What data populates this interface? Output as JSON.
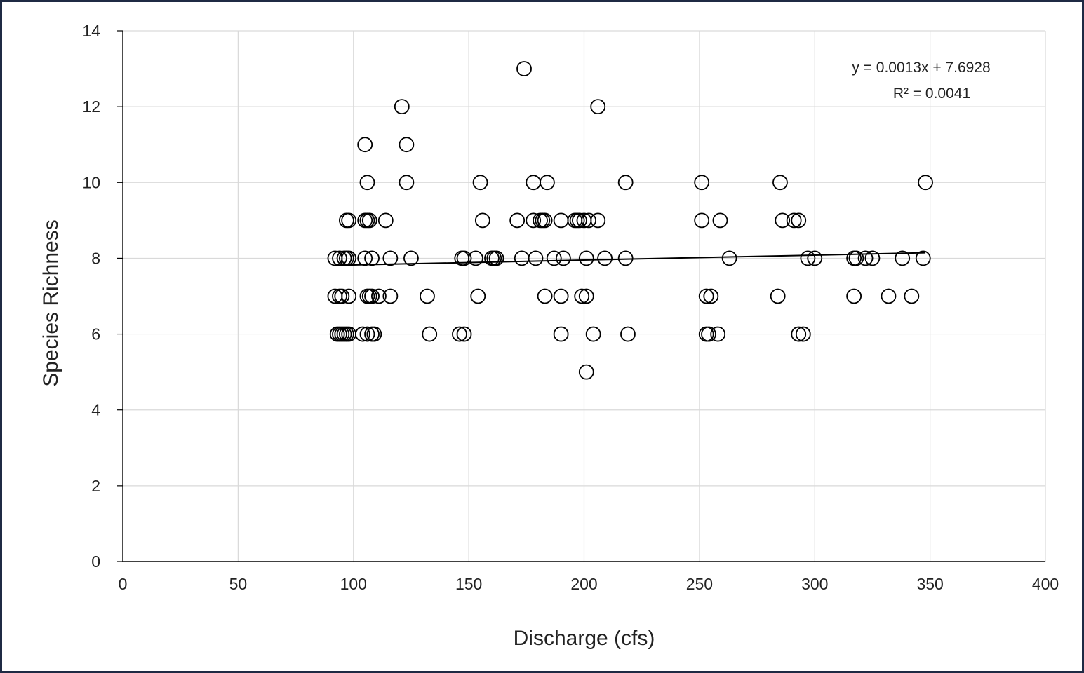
{
  "chart_data": {
    "type": "scatter",
    "title": "",
    "xlabel": "Discharge (cfs)",
    "ylabel": "Species Richness",
    "xlim": [
      0,
      400
    ],
    "ylim": [
      0,
      14
    ],
    "x_ticks": [
      "0",
      "50",
      "100",
      "150",
      "200",
      "250",
      "300",
      "350",
      "400"
    ],
    "y_ticks": [
      "0",
      "2",
      "4",
      "6",
      "8",
      "10",
      "12",
      "14"
    ],
    "grid": true,
    "marker": "open-circle",
    "marker_color": "#000000",
    "trendline": {
      "slope": 0.0013,
      "intercept": 7.6928,
      "x_range": [
        92,
        348
      ],
      "equation_label": "y = 0.0013x + 7.6928",
      "r2_label": "R² = 0.0041"
    },
    "points": [
      [
        174,
        13
      ],
      [
        121,
        12
      ],
      [
        206,
        12
      ],
      [
        105,
        11
      ],
      [
        123,
        11
      ],
      [
        106,
        10
      ],
      [
        123,
        10
      ],
      [
        155,
        10
      ],
      [
        178,
        10
      ],
      [
        184,
        10
      ],
      [
        218,
        10
      ],
      [
        251,
        10
      ],
      [
        285,
        10
      ],
      [
        348,
        10
      ],
      [
        97,
        9
      ],
      [
        98,
        9
      ],
      [
        105,
        9
      ],
      [
        106,
        9
      ],
      [
        107,
        9
      ],
      [
        114,
        9
      ],
      [
        156,
        9
      ],
      [
        171,
        9
      ],
      [
        178,
        9
      ],
      [
        181,
        9
      ],
      [
        182,
        9
      ],
      [
        183,
        9
      ],
      [
        190,
        9
      ],
      [
        196,
        9
      ],
      [
        197,
        9
      ],
      [
        198,
        9
      ],
      [
        200,
        9
      ],
      [
        202,
        9
      ],
      [
        206,
        9
      ],
      [
        251,
        9
      ],
      [
        259,
        9
      ],
      [
        286,
        9
      ],
      [
        291,
        9
      ],
      [
        293,
        9
      ],
      [
        92,
        8
      ],
      [
        94,
        8
      ],
      [
        96,
        8
      ],
      [
        97,
        8
      ],
      [
        98,
        8
      ],
      [
        105,
        8
      ],
      [
        108,
        8
      ],
      [
        116,
        8
      ],
      [
        125,
        8
      ],
      [
        147,
        8
      ],
      [
        148,
        8
      ],
      [
        153,
        8
      ],
      [
        160,
        8
      ],
      [
        161,
        8
      ],
      [
        162,
        8
      ],
      [
        173,
        8
      ],
      [
        179,
        8
      ],
      [
        187,
        8
      ],
      [
        191,
        8
      ],
      [
        201,
        8
      ],
      [
        209,
        8
      ],
      [
        218,
        8
      ],
      [
        263,
        8
      ],
      [
        297,
        8
      ],
      [
        300,
        8
      ],
      [
        317,
        8
      ],
      [
        318,
        8
      ],
      [
        322,
        8
      ],
      [
        325,
        8
      ],
      [
        338,
        8
      ],
      [
        347,
        8
      ],
      [
        92,
        7
      ],
      [
        94,
        7
      ],
      [
        95,
        7
      ],
      [
        98,
        7
      ],
      [
        106,
        7
      ],
      [
        107,
        7
      ],
      [
        108,
        7
      ],
      [
        111,
        7
      ],
      [
        116,
        7
      ],
      [
        132,
        7
      ],
      [
        154,
        7
      ],
      [
        183,
        7
      ],
      [
        190,
        7
      ],
      [
        199,
        7
      ],
      [
        201,
        7
      ],
      [
        253,
        7
      ],
      [
        255,
        7
      ],
      [
        284,
        7
      ],
      [
        317,
        7
      ],
      [
        332,
        7
      ],
      [
        342,
        7
      ],
      [
        93,
        6
      ],
      [
        94,
        6
      ],
      [
        95,
        6
      ],
      [
        96,
        6
      ],
      [
        97,
        6
      ],
      [
        98,
        6
      ],
      [
        104,
        6
      ],
      [
        106,
        6
      ],
      [
        108,
        6
      ],
      [
        109,
        6
      ],
      [
        133,
        6
      ],
      [
        146,
        6
      ],
      [
        148,
        6
      ],
      [
        190,
        6
      ],
      [
        204,
        6
      ],
      [
        219,
        6
      ],
      [
        253,
        6
      ],
      [
        254,
        6
      ],
      [
        258,
        6
      ],
      [
        293,
        6
      ],
      [
        295,
        6
      ],
      [
        201,
        5
      ]
    ]
  }
}
